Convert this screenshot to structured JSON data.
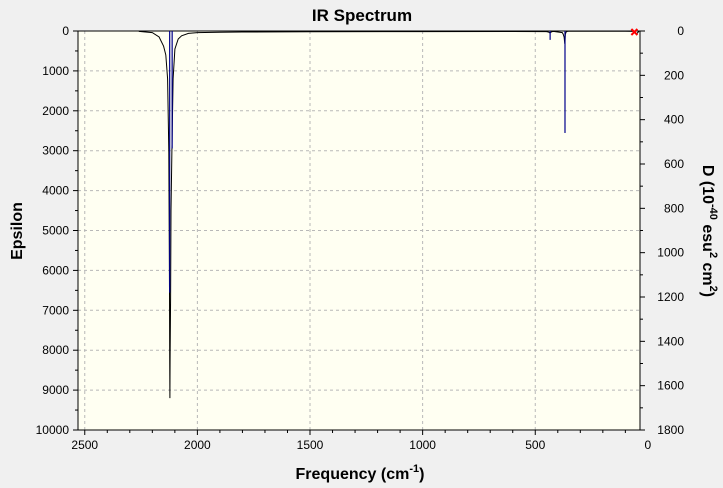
{
  "chart_data": {
    "type": "line",
    "title": "IR Spectrum",
    "xlabel": "Frequency (cm",
    "xlabel_sup": "-1",
    "xlabel_end": ")",
    "ylabel": "Epsilon",
    "y2label_parts": [
      "D (10",
      "-40",
      " esu",
      "2",
      " cm",
      "2",
      ")"
    ],
    "xlim": [
      2530,
      35
    ],
    "ylim": [
      10000,
      0
    ],
    "y2lim": [
      1800,
      0
    ],
    "x_ticks": [
      2500,
      2000,
      1500,
      1000,
      500,
      0
    ],
    "y_ticks": [
      0,
      1000,
      2000,
      3000,
      4000,
      5000,
      6000,
      7000,
      8000,
      9000,
      10000
    ],
    "y2_ticks": [
      0,
      200,
      400,
      600,
      800,
      1000,
      1200,
      1400,
      1600,
      1800
    ],
    "grid": true,
    "colors": {
      "spectrum": "#000000",
      "sticks": "#00008b",
      "plot_bg": "#fffff2",
      "marker": "#ff0000"
    },
    "spectrum": {
      "name": "Epsilon",
      "x": [
        2260,
        2200,
        2170,
        2150,
        2140,
        2132,
        2127,
        2124,
        2123,
        2122,
        2121,
        2119,
        2117,
        2113,
        2108,
        2100,
        2085,
        2070,
        2040,
        2000,
        1900,
        1800,
        1500,
        1000,
        600,
        450,
        440,
        435,
        430,
        425,
        420,
        380,
        376,
        372,
        370,
        369,
        368,
        367,
        366,
        364,
        362,
        358,
        352,
        340,
        320,
        300,
        200,
        100,
        60,
        55,
        50,
        45,
        40
      ],
      "y": [
        10,
        40,
        150,
        380,
        600,
        1200,
        3000,
        6500,
        8200,
        9200,
        8200,
        6700,
        4500,
        3000,
        1200,
        450,
        200,
        120,
        60,
        40,
        30,
        25,
        20,
        15,
        12,
        15,
        30,
        50,
        30,
        15,
        10,
        40,
        80,
        150,
        250,
        320,
        250,
        150,
        80,
        40,
        20,
        10,
        8,
        6,
        5,
        5,
        5,
        5,
        10,
        40,
        80,
        40,
        10
      ]
    },
    "sticks": {
      "name": "D",
      "x": [
        2123,
        2112,
        434,
        368
      ],
      "y": [
        1180,
        530,
        40,
        460
      ]
    },
    "marker": {
      "x": 60,
      "y": 0
    }
  }
}
